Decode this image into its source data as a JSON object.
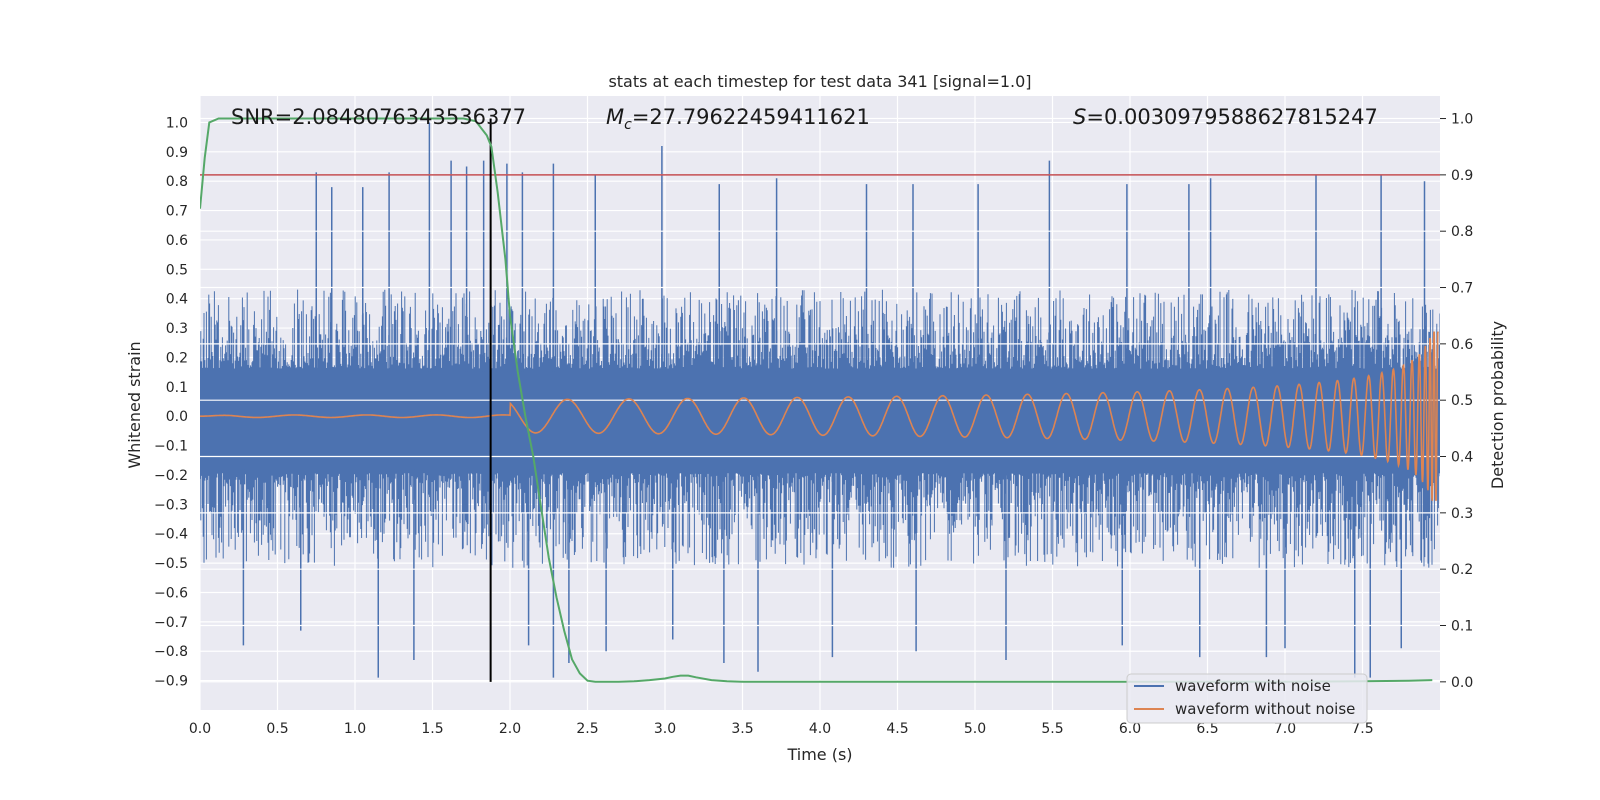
{
  "chart_data": {
    "type": "line",
    "title": "stats at each timestep for test data 341 [signal=1.0]",
    "xlabel": "Time (s)",
    "ylabel": "Whitened strain",
    "y2label": "Detection probability",
    "xlim": [
      0.0,
      8.0
    ],
    "ylim": [
      -1.0,
      1.09
    ],
    "y2lim": [
      -0.05,
      1.04
    ],
    "x_ticks": [
      "0.0",
      "0.5",
      "1.0",
      "1.5",
      "2.0",
      "2.5",
      "3.0",
      "3.5",
      "4.0",
      "4.5",
      "5.0",
      "5.5",
      "6.0",
      "6.5",
      "7.0",
      "7.5"
    ],
    "x_tick_values": [
      0.0,
      0.5,
      1.0,
      1.5,
      2.0,
      2.5,
      3.0,
      3.5,
      4.0,
      4.5,
      5.0,
      5.5,
      6.0,
      6.5,
      7.0,
      7.5
    ],
    "y_ticks": [
      "1.0",
      "0.9",
      "0.8",
      "0.7",
      "0.6",
      "0.5",
      "0.4",
      "0.3",
      "0.2",
      "0.1",
      "0.0",
      "−0.1",
      "−0.2",
      "−0.3",
      "−0.4",
      "−0.5",
      "−0.6",
      "−0.7",
      "−0.8",
      "−0.9"
    ],
    "y_tick_values": [
      1.0,
      0.9,
      0.8,
      0.7,
      0.6,
      0.5,
      0.4,
      0.3,
      0.2,
      0.1,
      0.0,
      -0.1,
      -0.2,
      -0.3,
      -0.4,
      -0.5,
      -0.6,
      -0.7,
      -0.8,
      -0.9
    ],
    "y2_ticks": [
      "1.0",
      "0.9",
      "0.8",
      "0.7",
      "0.6",
      "0.5",
      "0.4",
      "0.3",
      "0.2",
      "0.1",
      "0.0"
    ],
    "y2_tick_values": [
      1.0,
      0.9,
      0.8,
      0.7,
      0.6,
      0.5,
      0.4,
      0.3,
      0.2,
      0.1,
      0.0
    ],
    "annotations": {
      "snr": "SNR=2.0848076343536377",
      "mc": "=27.79622459411621",
      "mc_symbol": "M",
      "mc_sub": "c",
      "s": "=0.003097958862781524 7",
      "s_symbol": "S"
    },
    "legend": {
      "position": "bottom-right",
      "entries": [
        "waveform with noise",
        "waveform without noise"
      ]
    },
    "colors": {
      "noise": "#4c72b0",
      "clean": "#dd8452",
      "probability": "#55a868",
      "threshold": "#c44e52",
      "marker": "#000000",
      "panel": "#eaeaf2",
      "grid": "#ffffff"
    },
    "threshold_probability": 0.9,
    "marker_time": 1.875,
    "noisy_envelope": {
      "typical_upper": 0.36,
      "typical_lower": -0.43,
      "max": 1.0,
      "min": -0.89
    },
    "clean_waveform": {
      "description_values": {
        "start_amplitude": 0.0,
        "end_amplitude": 0.3,
        "start_freq_hz": 2,
        "end_freq_hz": 24
      }
    },
    "series": [
      {
        "name": "detection probability",
        "axis": "right",
        "x": [
          0.0,
          0.03,
          0.06,
          0.12,
          0.2,
          0.4,
          0.6,
          0.8,
          1.0,
          1.2,
          1.4,
          1.6,
          1.7,
          1.78,
          1.85,
          1.88,
          1.92,
          1.97,
          2.0,
          2.05,
          2.1,
          2.15,
          2.2,
          2.25,
          2.3,
          2.35,
          2.4,
          2.45,
          2.5,
          2.55,
          2.6,
          2.7,
          2.8,
          2.9,
          3.0,
          3.05,
          3.1,
          3.15,
          3.2,
          3.3,
          3.4,
          3.5,
          4.0,
          5.0,
          6.0,
          7.0,
          7.5,
          7.8,
          7.95
        ],
        "values": [
          0.84,
          0.93,
          0.993,
          1.0,
          1.0,
          1.0,
          1.0,
          1.0,
          1.0,
          1.0,
          1.0,
          1.0,
          1.0,
          0.995,
          0.97,
          0.95,
          0.87,
          0.75,
          0.65,
          0.55,
          0.47,
          0.4,
          0.31,
          0.22,
          0.15,
          0.09,
          0.04,
          0.015,
          0.002,
          0.0,
          0.0,
          0.0,
          0.001,
          0.003,
          0.006,
          0.009,
          0.011,
          0.011,
          0.008,
          0.003,
          0.001,
          0.0,
          0.0,
          0.0,
          0.0,
          0.0,
          0.001,
          0.002,
          0.003
        ]
      },
      {
        "name": "waveform with noise",
        "axis": "left",
        "spikes_upper": [
          [
            0.75,
            0.83
          ],
          [
            0.85,
            0.78
          ],
          [
            1.05,
            0.78
          ],
          [
            1.22,
            0.83
          ],
          [
            1.48,
            1.0
          ],
          [
            1.62,
            0.87
          ],
          [
            1.72,
            0.85
          ],
          [
            1.83,
            0.87
          ],
          [
            1.98,
            0.86
          ],
          [
            2.08,
            0.83
          ],
          [
            2.28,
            0.86
          ],
          [
            2.55,
            0.82
          ],
          [
            2.98,
            0.92
          ],
          [
            3.35,
            0.79
          ],
          [
            3.72,
            0.81
          ],
          [
            4.3,
            0.79
          ],
          [
            4.6,
            0.79
          ],
          [
            5.02,
            0.79
          ],
          [
            5.48,
            0.87
          ],
          [
            5.98,
            0.79
          ],
          [
            6.38,
            0.79
          ],
          [
            6.52,
            0.81
          ],
          [
            7.2,
            0.82
          ],
          [
            7.62,
            0.82
          ],
          [
            7.9,
            0.8
          ]
        ],
        "spikes_lower": [
          [
            0.28,
            -0.78
          ],
          [
            0.65,
            -0.73
          ],
          [
            1.15,
            -0.89
          ],
          [
            1.38,
            -0.83
          ],
          [
            2.12,
            -0.78
          ],
          [
            2.28,
            -0.89
          ],
          [
            2.38,
            -0.84
          ],
          [
            2.62,
            -0.8
          ],
          [
            3.05,
            -0.76
          ],
          [
            3.38,
            -0.84
          ],
          [
            3.6,
            -0.87
          ],
          [
            4.08,
            -0.82
          ],
          [
            4.62,
            -0.8
          ],
          [
            5.2,
            -0.83
          ],
          [
            5.95,
            -0.78
          ],
          [
            6.45,
            -0.82
          ],
          [
            6.88,
            -0.82
          ],
          [
            7.0,
            -0.79
          ],
          [
            7.45,
            -0.89
          ],
          [
            7.55,
            -0.89
          ],
          [
            7.75,
            -0.79
          ]
        ]
      }
    ]
  }
}
